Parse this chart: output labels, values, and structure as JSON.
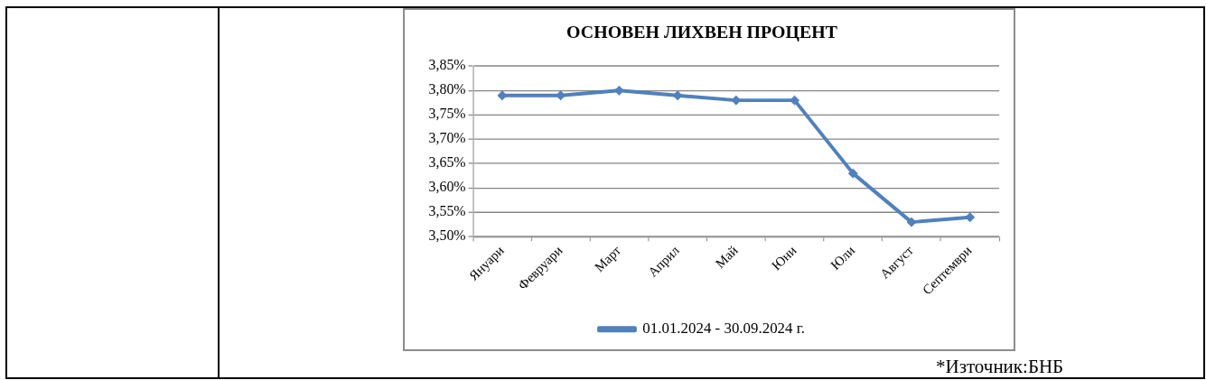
{
  "chart_data": {
    "type": "line",
    "title": "ОСНОВЕН ЛИХВЕН ПРОЦЕНТ",
    "categories": [
      "Януари",
      "Февруари",
      "Март",
      "Април",
      "Май",
      "Юни",
      "Юли",
      "Август",
      "Септември"
    ],
    "series": [
      {
        "name": "01.01.2024 - 30.09.2024 г.",
        "color": "#4f81bd",
        "values": [
          3.79,
          3.79,
          3.8,
          3.79,
          3.78,
          3.78,
          3.63,
          3.53,
          3.54
        ]
      }
    ],
    "ylim": [
      3.5,
      3.85
    ],
    "yticks": [
      {
        "value": 3.5,
        "label": "3,50%"
      },
      {
        "value": 3.55,
        "label": "3,55%"
      },
      {
        "value": 3.6,
        "label": "3,60%"
      },
      {
        "value": 3.65,
        "label": "3,65%"
      },
      {
        "value": 3.7,
        "label": "3,70%"
      },
      {
        "value": 3.75,
        "label": "3,75%"
      },
      {
        "value": 3.8,
        "label": "3,80%"
      },
      {
        "value": 3.85,
        "label": "3,85%"
      }
    ],
    "grid": "y",
    "legend": "bottom",
    "marker": "diamond",
    "line_style": "solid",
    "annotations": [
      "*Източник:БНБ"
    ]
  }
}
